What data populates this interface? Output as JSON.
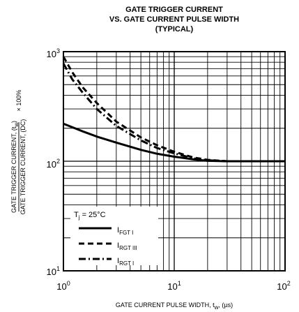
{
  "chart_data": {
    "type": "line",
    "title_lines": [
      "GATE TRIGGER CURRENT",
      "VS. GATE CURRENT PULSE WIDTH",
      "(TYPICAL)"
    ],
    "xlabel": {
      "main": "GATE CURRENT PULSE WIDTH, t",
      "sub": "w",
      "unit": ", (µs)"
    },
    "ylabel": {
      "numerator": {
        "main": "GATE TRIGGER CURRENT, (t",
        "sub": "w",
        "end": ")"
      },
      "denominator": "GATE TRIGGER CURRENT, (DC)",
      "suffix": "× 100%"
    },
    "x_scale": "log",
    "y_scale": "log",
    "xlim": [
      1,
      100
    ],
    "ylim": [
      10,
      1000
    ],
    "x_ticks": [
      {
        "base": "10",
        "exp": "0"
      },
      {
        "base": "10",
        "exp": "1"
      },
      {
        "base": "10",
        "exp": "2"
      }
    ],
    "y_ticks": [
      {
        "base": "10",
        "exp": "1"
      },
      {
        "base": "10",
        "exp": "2"
      },
      {
        "base": "10",
        "exp": "3"
      }
    ],
    "grid": true,
    "legend_position": "bottom-left",
    "legend_title": {
      "main": "T",
      "sub": "j",
      "end": " = 25°C"
    },
    "series": [
      {
        "name": "I",
        "name_sub": "FGT I",
        "style": "solid",
        "x": [
          1,
          1.5,
          2,
          3,
          5,
          7,
          10,
          15,
          20,
          30,
          50,
          100
        ],
        "y": [
          220,
          187,
          168,
          148,
          127,
          117,
          110,
          104,
          101,
          100,
          100,
          100
        ]
      },
      {
        "name": "I",
        "name_sub": "RGT III",
        "style": "dashed",
        "x": [
          1,
          1.2,
          1.5,
          2,
          3,
          5,
          7,
          10,
          15,
          20,
          30,
          50,
          100
        ],
        "y": [
          900,
          650,
          470,
          340,
          230,
          165,
          140,
          122,
          108,
          103,
          100,
          100,
          100
        ]
      },
      {
        "name": "I",
        "name_sub": "RGT I",
        "style": "dashdot",
        "x": [
          1,
          1.2,
          1.5,
          2,
          3,
          5,
          7,
          10,
          15,
          20,
          30,
          50,
          100
        ],
        "y": [
          780,
          560,
          420,
          300,
          210,
          155,
          132,
          118,
          106,
          102,
          100,
          100,
          100
        ]
      }
    ]
  }
}
